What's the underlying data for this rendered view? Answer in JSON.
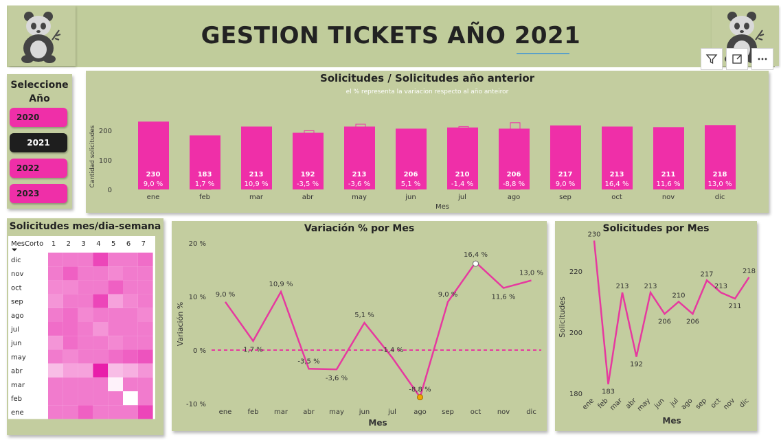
{
  "header": {
    "title": "GESTION TICKETS AÑO 2021"
  },
  "toolbar": {
    "filter_icon": "filter-icon",
    "focus_icon": "focus-mode-icon",
    "more_icon": "more-options-icon"
  },
  "year_slicer": {
    "heading": "Seleccione Año",
    "options": [
      {
        "label": "2020",
        "selected": false
      },
      {
        "label": "2021",
        "selected": true
      },
      {
        "label": "2022",
        "selected": false
      },
      {
        "label": "2023",
        "selected": false
      }
    ]
  },
  "colors": {
    "accent": "#ef2fa8",
    "panel": "#c3cd9f",
    "line": "#e6399f",
    "selected": "#1e1e1e"
  },
  "chart_data": [
    {
      "id": "bar",
      "type": "bar",
      "title": "Solicitudes / Solicitudes año anterior",
      "subtitle": "el % representa la variacion respecto al año anteiror",
      "xlabel": "Mes",
      "ylabel": "Cantidad solicitudes",
      "ylim": [
        0,
        250
      ],
      "yticks": [
        0,
        100,
        200
      ],
      "categories": [
        "ene",
        "feb",
        "mar",
        "abr",
        "may",
        "jun",
        "jul",
        "ago",
        "sep",
        "oct",
        "nov",
        "dic"
      ],
      "series": [
        {
          "values": [
            230,
            183,
            213,
            192,
            213,
            206,
            210,
            206,
            217,
            213,
            211,
            218
          ]
        },
        {
          "values": [
            211,
            180,
            192,
            199,
            221,
            196,
            213,
            226,
            199,
            183,
            189,
            193
          ]
        }
      ],
      "labels": [
        "230",
        "183",
        "213",
        "192",
        "213",
        "206",
        "210",
        "206",
        "217",
        "213",
        "211",
        "218"
      ],
      "pct_labels": [
        "9,0 %",
        "1,7 %",
        "10,9 %",
        "-3,5 %",
        "-3,6 %",
        "5,1 %",
        "-1,4 %",
        "-8,8 %",
        "9,0 %",
        "16,4 %",
        "11,6 %",
        "13,0 %"
      ]
    },
    {
      "id": "heatmap",
      "type": "heatmap",
      "title": "Solicitudes mes/dia-semana",
      "row_header": "MesCorto",
      "columns": [
        "1",
        "2",
        "3",
        "4",
        "5",
        "6",
        "7"
      ],
      "rows": [
        "dic",
        "nov",
        "oct",
        "sep",
        "ago",
        "jul",
        "jun",
        "may",
        "abr",
        "mar",
        "feb",
        "ene"
      ],
      "values": [
        [
          30,
          30,
          30,
          38,
          30,
          30,
          32
        ],
        [
          30,
          34,
          30,
          30,
          28,
          30,
          30
        ],
        [
          28,
          28,
          30,
          30,
          34,
          30,
          30
        ],
        [
          26,
          30,
          30,
          38,
          24,
          28,
          30
        ],
        [
          30,
          32,
          28,
          30,
          30,
          30,
          28
        ],
        [
          32,
          32,
          30,
          26,
          30,
          30,
          30
        ],
        [
          26,
          32,
          30,
          30,
          28,
          30,
          30
        ],
        [
          30,
          28,
          30,
          30,
          32,
          34,
          36
        ],
        [
          20,
          24,
          24,
          44,
          20,
          22,
          26
        ],
        [
          30,
          30,
          30,
          30,
          12,
          30,
          30
        ],
        [
          30,
          30,
          30,
          30,
          30,
          10,
          30
        ],
        [
          30,
          30,
          34,
          30,
          30,
          30,
          38
        ]
      ]
    },
    {
      "id": "line_var",
      "type": "line",
      "title": "Variación % por Mes",
      "xlabel": "Mes",
      "ylabel": "Variación %",
      "ylim": [
        -10,
        20
      ],
      "yticks": [
        -10,
        0,
        10,
        20
      ],
      "ytick_labels": [
        "-10 %",
        "0 %",
        "10 %",
        "20 %"
      ],
      "categories": [
        "ene",
        "feb",
        "mar",
        "abr",
        "may",
        "jun",
        "jul",
        "ago",
        "sep",
        "oct",
        "nov",
        "dic"
      ],
      "values": [
        9.0,
        1.7,
        10.9,
        -3.5,
        -3.6,
        5.1,
        -1.4,
        -8.8,
        9.0,
        16.4,
        11.6,
        13.0
      ],
      "labels": [
        "9,0 %",
        "1,7 %",
        "10,9 %",
        "-3,5 %",
        "-3,6 %",
        "5,1 %",
        "-1,4 %",
        "-8,8 %",
        "9,0 %",
        "16,4 %",
        "11,6 %",
        "13,0 %"
      ]
    },
    {
      "id": "line_sol",
      "type": "line",
      "title": "Solicitudes por Mes",
      "xlabel": "Mes",
      "ylabel": "Solicitudes",
      "ylim": [
        180,
        232
      ],
      "yticks": [
        180,
        200,
        220
      ],
      "categories": [
        "ene",
        "feb",
        "mar",
        "abr",
        "may",
        "jun",
        "jul",
        "ago",
        "sep",
        "oct",
        "nov",
        "dic"
      ],
      "values": [
        230,
        183,
        213,
        192,
        213,
        206,
        210,
        206,
        217,
        213,
        211,
        218
      ],
      "labels": [
        "230",
        "183",
        "213",
        "192",
        "213",
        "206",
        "210",
        "206",
        "217",
        "213",
        "211",
        "218"
      ]
    }
  ]
}
